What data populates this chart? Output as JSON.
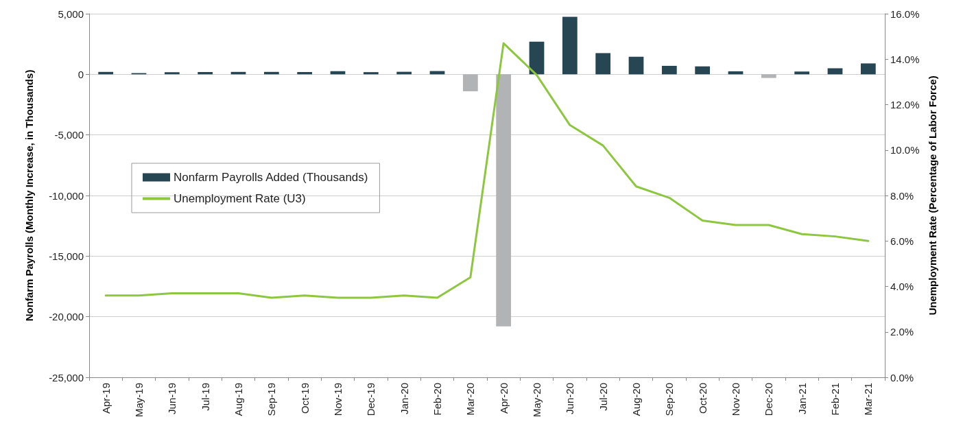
{
  "chart_data": {
    "type": "bar",
    "ylabel": "Nonfarm Payrolls (Monthly Increase, in Thousands)",
    "y2label": "Unemployment Rate (Percentage of Labor Force)",
    "categories": [
      "Apr-19",
      "May-19",
      "Jun-19",
      "Jul-19",
      "Aug-19",
      "Sep-19",
      "Oct-19",
      "Nov-19",
      "Dec-19",
      "Jan-20",
      "Feb-20",
      "Mar-20",
      "Apr-20",
      "May-20",
      "Jun-20",
      "Jul-20",
      "Aug-20",
      "Sep-20",
      "Oct-20",
      "Nov-20",
      "Dec-20",
      "Jan-21",
      "Feb-21",
      "Mar-21"
    ],
    "series": [
      {
        "name": "Nonfarm Payrolls Added (Thousands)",
        "color": "#264653",
        "colors": [
          "#264653",
          "#264653",
          "#264653",
          "#264653",
          "#264653",
          "#264653",
          "#264653",
          "#264653",
          "#264653",
          "#264653",
          "#264653",
          "#b1b3b5",
          "#b1b3b5",
          "#264653",
          "#264653",
          "#264653",
          "#264653",
          "#264653",
          "#264653",
          "#264653",
          "#b1b3b5",
          "#264653",
          "#264653",
          "#264653"
        ],
        "values": [
          200,
          100,
          180,
          190,
          200,
          200,
          190,
          260,
          180,
          210,
          270,
          -1400,
          -20800,
          2700,
          4750,
          1750,
          1450,
          700,
          650,
          250,
          -300,
          230,
          500,
          900
        ]
      },
      {
        "name": "Unemployment Rate (U3)",
        "type": "line",
        "axis": "y2",
        "color": "#8dc63f",
        "values": [
          3.6,
          3.6,
          3.7,
          3.7,
          3.7,
          3.5,
          3.6,
          3.5,
          3.5,
          3.6,
          3.5,
          4.4,
          14.7,
          13.3,
          11.1,
          10.2,
          8.4,
          7.9,
          6.9,
          6.7,
          6.7,
          6.3,
          6.2,
          6.0
        ]
      }
    ],
    "ylim": [
      -25000,
      5000
    ],
    "yticks": [
      {
        "value": -25000,
        "label": "-25,000"
      },
      {
        "value": -20000,
        "label": "-20,000"
      },
      {
        "value": -15000,
        "label": "-15,000"
      },
      {
        "value": -10000,
        "label": "-10,000"
      },
      {
        "value": -5000,
        "label": "-5,000"
      },
      0,
      {
        "value": 5000,
        "label": "5,000"
      }
    ],
    "y2lim": [
      0,
      16
    ],
    "y2ticks": [
      {
        "value": 0,
        "label": "0.0%"
      },
      {
        "value": 2,
        "label": "2.0%"
      },
      {
        "value": 4,
        "label": "4.0%"
      },
      {
        "value": 6,
        "label": "6.0%"
      },
      {
        "value": 8,
        "label": "8.0%"
      },
      {
        "value": 10,
        "label": "10.0%"
      },
      {
        "value": 12,
        "label": "12.0%"
      },
      {
        "value": 14,
        "label": "14.0%"
      },
      {
        "value": 16,
        "label": "16.0%"
      }
    ],
    "grid": "y",
    "legend": "left",
    "marker": "none",
    "line_style": "solid"
  }
}
